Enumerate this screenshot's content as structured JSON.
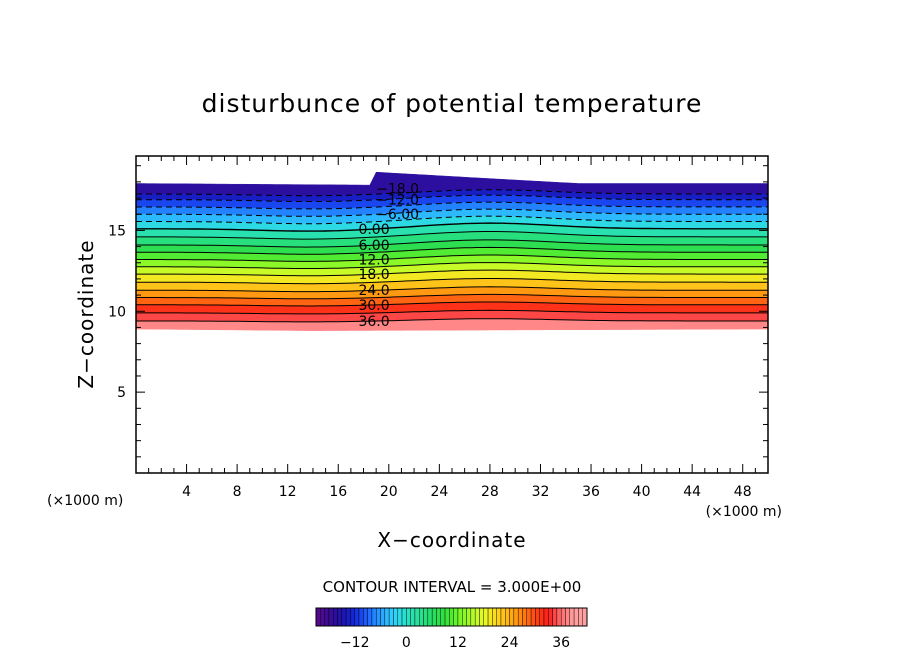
{
  "chart_data": {
    "type": "contour",
    "title": "disturbunce of potential temperature",
    "xlabel": "X−coordinate",
    "ylabel": "Z−coordinate",
    "x_unit": "(×1000 m)",
    "y_unit": "(×1000 m)",
    "xlim": [
      0,
      50
    ],
    "ylim": [
      0,
      19.6
    ],
    "x_ticks": [
      4,
      8,
      12,
      16,
      20,
      24,
      28,
      32,
      36,
      40,
      44,
      48
    ],
    "x_tick_labels": [
      "4",
      "8",
      "12",
      "16",
      "20",
      "24",
      "28",
      "32",
      "36",
      "40",
      "44",
      "48"
    ],
    "y_ticks": [
      5,
      10,
      15
    ],
    "y_tick_labels": [
      "5",
      "10",
      "15"
    ],
    "contour_interval_text": "CONTOUR INTERVAL = 3.000E+00",
    "contour_interval": 3.0,
    "levels_range": [
      -18,
      39
    ],
    "top_boundary_z": [
      {
        "x": 0,
        "z": 17.9
      },
      {
        "x": 18.5,
        "z": 17.8
      },
      {
        "x": 19,
        "z": 18.6
      },
      {
        "x": 28,
        "z": 18.2
      },
      {
        "x": 35,
        "z": 17.9
      },
      {
        "x": 50,
        "z": 17.9
      }
    ],
    "bottom_boundary_z": [
      {
        "x": 0,
        "z": 8.9
      },
      {
        "x": 14,
        "z": 8.8
      },
      {
        "x": 50,
        "z": 8.9
      }
    ],
    "contour_labels": [
      {
        "text": "−18.0",
        "value": -18,
        "x": 19.0,
        "z": 17.6
      },
      {
        "text": "−12.0",
        "value": -12,
        "x": 19.0,
        "z": 16.9
      },
      {
        "text": "−6.00",
        "value": -6,
        "x": 19.0,
        "z": 16.0
      },
      {
        "text": "0.00",
        "value": 0,
        "x": 17.6,
        "z": 15.1
      },
      {
        "text": "6.00",
        "value": 6,
        "x": 17.6,
        "z": 14.1
      },
      {
        "text": "12.0",
        "value": 12,
        "x": 17.6,
        "z": 13.2
      },
      {
        "text": "18.0",
        "value": 18,
        "x": 17.6,
        "z": 12.3
      },
      {
        "text": "24.0",
        "value": 24,
        "x": 17.6,
        "z": 11.3
      },
      {
        "text": "30.0",
        "value": 30,
        "x": 17.6,
        "z": 10.4
      },
      {
        "text": "36.0",
        "value": 36,
        "x": 17.6,
        "z": 9.4
      }
    ],
    "colorbar": {
      "range": [
        -21,
        42
      ],
      "tick_values": [
        -12,
        0,
        12,
        24,
        36
      ],
      "tick_labels": [
        "−12",
        "0",
        "12",
        "24",
        "36"
      ]
    }
  }
}
